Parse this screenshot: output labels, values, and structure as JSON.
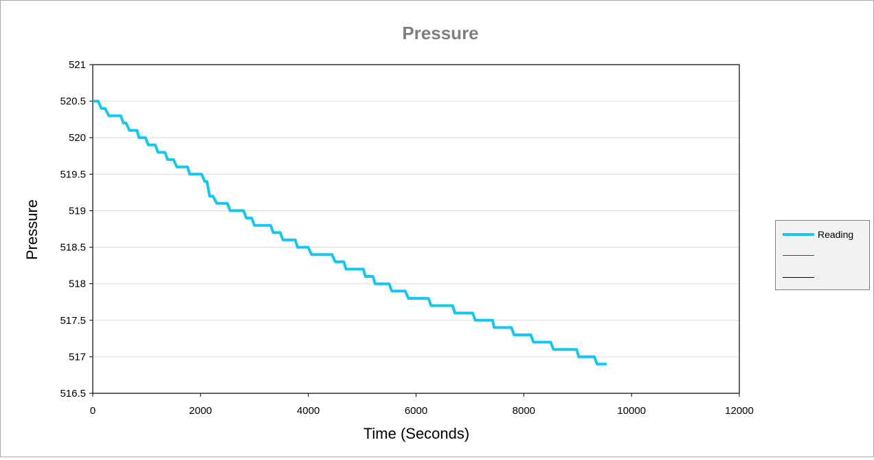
{
  "chart_data": {
    "type": "line",
    "title": "Pressure",
    "xlabel": "Time (Seconds)",
    "ylabel": "Pressure",
    "xlim": [
      0,
      12000
    ],
    "ylim": [
      516.5,
      521
    ],
    "x_ticks": [
      0,
      2000,
      4000,
      6000,
      8000,
      10000,
      12000
    ],
    "y_ticks": [
      516.5,
      517,
      517.5,
      518,
      518.5,
      519,
      519.5,
      520,
      520.5,
      521
    ],
    "grid": "horizontal",
    "legend_position": "right",
    "series": [
      {
        "name": "Reading",
        "color": "#14c6f2",
        "points": [
          [
            0,
            520.5
          ],
          [
            100,
            520.5
          ],
          [
            160,
            520.4
          ],
          [
            230,
            520.4
          ],
          [
            300,
            520.3
          ],
          [
            520,
            520.3
          ],
          [
            570,
            520.2
          ],
          [
            620,
            520.2
          ],
          [
            680,
            520.1
          ],
          [
            820,
            520.1
          ],
          [
            860,
            520.0
          ],
          [
            980,
            520.0
          ],
          [
            1030,
            519.9
          ],
          [
            1160,
            519.9
          ],
          [
            1210,
            519.8
          ],
          [
            1340,
            519.8
          ],
          [
            1390,
            519.7
          ],
          [
            1500,
            519.7
          ],
          [
            1560,
            519.6
          ],
          [
            1760,
            519.6
          ],
          [
            1800,
            519.5
          ],
          [
            2020,
            519.5
          ],
          [
            2080,
            519.4
          ],
          [
            2120,
            519.4
          ],
          [
            2170,
            519.2
          ],
          [
            2230,
            519.2
          ],
          [
            2300,
            519.1
          ],
          [
            2500,
            519.1
          ],
          [
            2550,
            519.0
          ],
          [
            2800,
            519.0
          ],
          [
            2850,
            518.9
          ],
          [
            2950,
            518.9
          ],
          [
            3000,
            518.8
          ],
          [
            3300,
            518.8
          ],
          [
            3350,
            518.7
          ],
          [
            3480,
            518.7
          ],
          [
            3530,
            518.6
          ],
          [
            3760,
            518.6
          ],
          [
            3800,
            518.5
          ],
          [
            4000,
            518.5
          ],
          [
            4060,
            518.4
          ],
          [
            4440,
            518.4
          ],
          [
            4500,
            518.3
          ],
          [
            4660,
            518.3
          ],
          [
            4700,
            518.2
          ],
          [
            5020,
            518.2
          ],
          [
            5060,
            518.1
          ],
          [
            5200,
            518.1
          ],
          [
            5240,
            518.0
          ],
          [
            5500,
            518.0
          ],
          [
            5550,
            517.9
          ],
          [
            5800,
            517.9
          ],
          [
            5860,
            517.8
          ],
          [
            6230,
            517.8
          ],
          [
            6280,
            517.7
          ],
          [
            6680,
            517.7
          ],
          [
            6720,
            517.6
          ],
          [
            7050,
            517.6
          ],
          [
            7100,
            517.5
          ],
          [
            7420,
            517.5
          ],
          [
            7450,
            517.4
          ],
          [
            7770,
            517.4
          ],
          [
            7820,
            517.3
          ],
          [
            8130,
            517.3
          ],
          [
            8180,
            517.2
          ],
          [
            8500,
            517.2
          ],
          [
            8550,
            517.1
          ],
          [
            8980,
            517.1
          ],
          [
            9020,
            517.0
          ],
          [
            9310,
            517.0
          ],
          [
            9360,
            516.9
          ],
          [
            9540,
            516.9
          ]
        ]
      },
      {
        "name": "",
        "color": "#ff0000",
        "points": []
      },
      {
        "name": "",
        "color": "#000000",
        "points": []
      }
    ]
  }
}
